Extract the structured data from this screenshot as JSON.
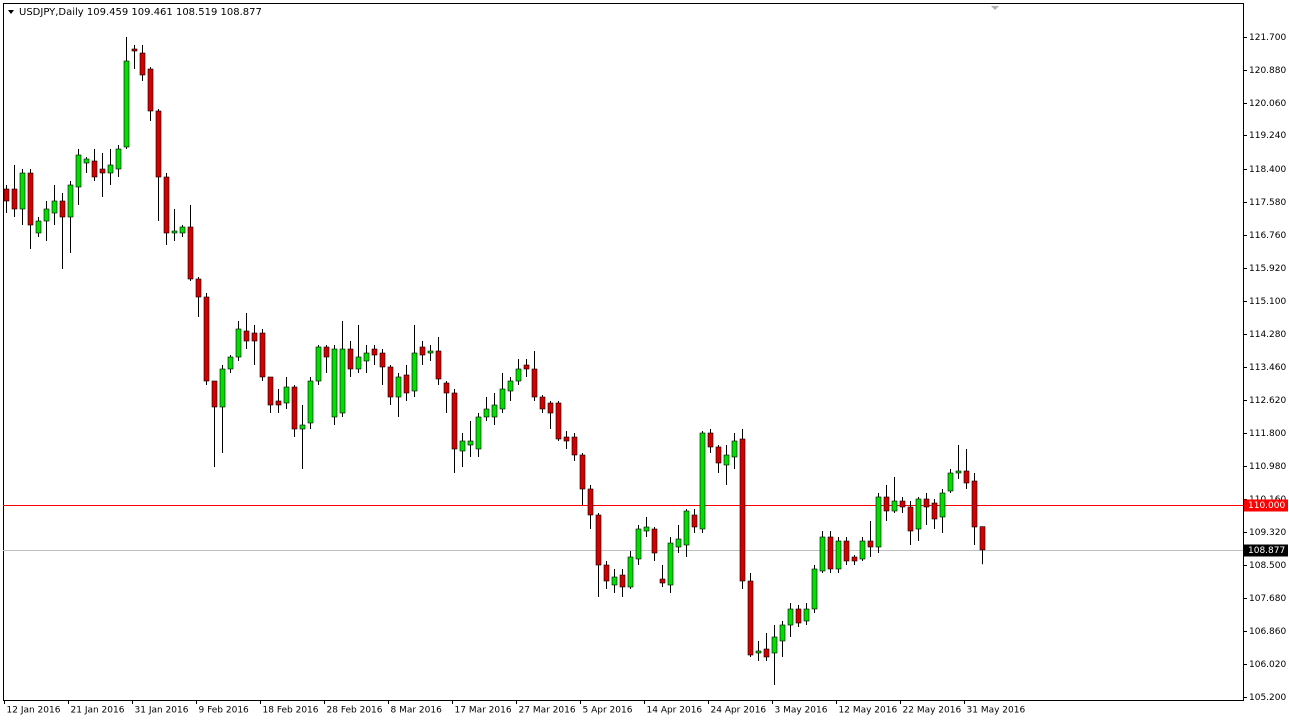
{
  "chart_data": {
    "type": "candlestick",
    "title": "USDJPY,Daily  109.459 109.461 108.519 108.877",
    "up_color": "#00e000",
    "down_color": "#d40000",
    "outline_color": "#000000",
    "categories": [
      "12 Jan 2016",
      null,
      null,
      null,
      null,
      null,
      null,
      null,
      "21 Jan 2016",
      null,
      null,
      null,
      null,
      null,
      null,
      null,
      "31 Jan 2016",
      null,
      null,
      null,
      null,
      null,
      null,
      null,
      "9 Feb 2016",
      null,
      null,
      null,
      null,
      null,
      null,
      null,
      "18 Feb 2016",
      null,
      null,
      null,
      null,
      null,
      null,
      null,
      "28 Feb 2016",
      null,
      null,
      null,
      null,
      null,
      null,
      null,
      "8 Mar 2016",
      null,
      null,
      null,
      null,
      null,
      null,
      null,
      "17 Mar 2016",
      null,
      null,
      null,
      null,
      null,
      null,
      null,
      "27 Mar 2016",
      null,
      null,
      null,
      null,
      null,
      null,
      null,
      "5 Apr 2016",
      null,
      null,
      null,
      null,
      null,
      null,
      null,
      "14 Apr 2016",
      null,
      null,
      null,
      null,
      null,
      null,
      null,
      "24 Apr 2016",
      null,
      null,
      null,
      null,
      null,
      null,
      null,
      "3 May 2016",
      null,
      null,
      null,
      null,
      null,
      null,
      null,
      "12 May 2016",
      null,
      null,
      null,
      null,
      null,
      null,
      null,
      "22 May 2016",
      null,
      null,
      null,
      null,
      null,
      null,
      null,
      "31 May 2016",
      null,
      null
    ],
    "open": [
      117.9,
      117.9,
      117.4,
      118.3,
      116.8,
      117.1,
      117.3,
      117.6,
      117.2,
      117.95,
      118.55,
      118.6,
      118.4,
      118.3,
      118.4,
      118.95,
      121.4,
      121.3,
      120.9,
      119.85,
      118.2,
      116.8,
      116.8,
      116.95,
      115.65,
      115.2,
      113.1,
      112.45,
      113.4,
      113.7,
      114.35,
      114.3,
      114.3,
      113.2,
      112.6,
      112.55,
      112.95,
      111.9,
      112.05,
      113.1,
      113.95,
      112.2,
      112.3,
      113.9,
      113.4,
      113.6,
      113.9,
      113.8,
      113.45,
      112.7,
      113.25,
      112.85,
      113.95,
      113.8,
      113.85,
      113.05,
      112.8,
      111.35,
      111.5,
      111.4,
      112.2,
      112.2,
      112.4,
      112.85,
      113.1,
      113.5,
      113.4,
      112.7,
      112.55,
      112.55,
      111.7,
      111.7,
      111.25,
      110.4,
      109.75,
      108.5,
      108.0,
      108.25,
      107.95,
      108.65,
      109.35,
      109.4,
      108.15,
      108.0,
      108.95,
      109.0,
      109.75,
      109.4,
      111.8,
      111.45,
      111.0,
      111.2,
      111.65,
      108.1,
      106.3,
      106.4,
      106.3,
      106.6,
      107.0,
      107.4,
      107.1,
      107.4,
      108.35,
      109.2,
      108.4,
      109.1,
      108.7,
      108.65,
      109.1,
      108.95,
      110.2,
      109.85,
      110.1,
      109.95,
      109.4,
      110.15,
      110.05,
      109.7,
      110.35,
      110.8,
      110.85,
      110.6,
      109.459
    ],
    "high": [
      118.0,
      118.5,
      118.4,
      118.4,
      117.2,
      117.6,
      118.0,
      117.8,
      118.1,
      118.9,
      118.7,
      118.9,
      118.8,
      118.9,
      119.0,
      121.7,
      121.5,
      121.5,
      120.95,
      119.9,
      118.3,
      117.4,
      117.0,
      117.5,
      115.7,
      115.3,
      113.1,
      113.5,
      113.75,
      114.6,
      114.8,
      114.5,
      114.4,
      113.2,
      112.9,
      113.2,
      113.0,
      112.5,
      113.2,
      114.0,
      114.0,
      114.0,
      114.6,
      114.1,
      114.5,
      114.0,
      114.0,
      113.9,
      113.5,
      113.3,
      113.5,
      114.5,
      114.1,
      114.0,
      114.2,
      113.1,
      112.9,
      111.8,
      112.1,
      112.3,
      112.7,
      112.8,
      113.3,
      113.2,
      113.65,
      113.65,
      113.85,
      112.75,
      112.6,
      112.6,
      111.85,
      111.8,
      111.3,
      110.5,
      109.8,
      108.6,
      108.4,
      108.4,
      108.85,
      109.5,
      109.7,
      109.45,
      108.5,
      109.2,
      109.5,
      109.9,
      109.9,
      111.85,
      111.9,
      111.5,
      111.5,
      111.8,
      111.9,
      108.3,
      106.6,
      106.8,
      107.0,
      107.1,
      107.55,
      107.5,
      107.55,
      108.5,
      109.35,
      109.35,
      109.2,
      109.2,
      108.75,
      109.2,
      109.6,
      110.3,
      110.5,
      110.7,
      110.2,
      110.1,
      110.2,
      110.3,
      110.15,
      110.4,
      110.9,
      111.5,
      111.4,
      110.8,
      109.461
    ],
    "low": [
      117.3,
      117.2,
      117.0,
      116.4,
      116.7,
      116.6,
      117.0,
      115.9,
      116.3,
      117.5,
      118.3,
      118.1,
      117.7,
      118.0,
      118.2,
      118.9,
      120.9,
      120.6,
      119.6,
      117.1,
      116.5,
      116.6,
      116.7,
      115.6,
      114.7,
      113.0,
      110.95,
      111.3,
      113.3,
      113.6,
      113.9,
      113.5,
      113.1,
      112.3,
      112.3,
      112.4,
      111.7,
      110.9,
      111.9,
      113.0,
      113.3,
      112.0,
      112.2,
      113.2,
      113.3,
      113.3,
      113.5,
      113.0,
      112.5,
      112.2,
      112.6,
      112.7,
      113.5,
      113.6,
      113.0,
      112.3,
      110.8,
      110.95,
      111.2,
      111.2,
      112.1,
      112.0,
      112.3,
      112.6,
      113.0,
      113.2,
      112.6,
      112.3,
      111.9,
      111.6,
      111.4,
      111.1,
      110.0,
      109.4,
      107.7,
      107.9,
      107.8,
      107.7,
      107.9,
      108.5,
      109.2,
      108.6,
      107.95,
      107.8,
      108.8,
      108.7,
      109.3,
      109.3,
      111.3,
      110.8,
      110.5,
      110.9,
      107.9,
      106.2,
      106.1,
      106.1,
      105.5,
      106.2,
      106.7,
      106.95,
      107.0,
      107.3,
      108.3,
      108.3,
      108.3,
      108.5,
      108.5,
      108.6,
      108.7,
      108.8,
      109.6,
      109.8,
      109.8,
      109.0,
      109.1,
      109.5,
      109.4,
      109.3,
      110.3,
      110.65,
      110.4,
      109.0,
      108.519
    ],
    "close": [
      117.6,
      117.4,
      118.3,
      117.0,
      117.1,
      117.4,
      117.6,
      117.2,
      118.0,
      118.75,
      118.65,
      118.2,
      118.3,
      118.5,
      118.9,
      121.1,
      121.35,
      120.75,
      119.85,
      118.2,
      116.8,
      116.85,
      116.95,
      115.65,
      115.2,
      113.1,
      112.45,
      113.4,
      113.7,
      114.4,
      114.1,
      114.1,
      113.2,
      112.5,
      112.5,
      112.95,
      111.9,
      112.0,
      113.1,
      113.95,
      113.7,
      113.9,
      113.9,
      113.4,
      113.7,
      113.8,
      113.75,
      113.45,
      112.7,
      113.2,
      112.8,
      113.8,
      113.75,
      113.85,
      113.15,
      112.8,
      111.4,
      111.6,
      111.6,
      112.2,
      112.4,
      112.5,
      112.9,
      113.1,
      113.4,
      113.4,
      112.7,
      112.4,
      112.3,
      111.65,
      111.6,
      111.25,
      110.4,
      109.75,
      108.5,
      108.1,
      108.2,
      107.95,
      108.7,
      109.4,
      109.45,
      108.8,
      108.05,
      109.05,
      109.15,
      109.85,
      109.45,
      111.8,
      111.45,
      111.05,
      111.25,
      111.6,
      108.1,
      106.25,
      106.35,
      106.2,
      106.7,
      107.0,
      107.4,
      107.05,
      107.4,
      108.4,
      109.2,
      108.4,
      109.1,
      108.6,
      108.6,
      109.1,
      108.95,
      110.2,
      109.85,
      110.1,
      109.95,
      109.35,
      110.15,
      109.95,
      109.65,
      110.3,
      110.8,
      110.85,
      110.55,
      109.45,
      108.877
    ],
    "ylim": [
      105.125,
      122.55
    ],
    "yticks": [
      {
        "value": 121.7,
        "label": "121.700"
      },
      {
        "value": 120.88,
        "label": "120.880"
      },
      {
        "value": 120.06,
        "label": "120.060"
      },
      {
        "value": 119.24,
        "label": "119.240"
      },
      {
        "value": 118.4,
        "label": "118.400"
      },
      {
        "value": 117.58,
        "label": "117.580"
      },
      {
        "value": 116.76,
        "label": "116.760"
      },
      {
        "value": 115.92,
        "label": "115.920"
      },
      {
        "value": 115.1,
        "label": "115.100"
      },
      {
        "value": 114.28,
        "label": "114.280"
      },
      {
        "value": 113.46,
        "label": "113.460"
      },
      {
        "value": 112.62,
        "label": "112.620"
      },
      {
        "value": 111.8,
        "label": "111.800"
      },
      {
        "value": 110.98,
        "label": "110.980"
      },
      {
        "value": 110.16,
        "label": "110.160"
      },
      {
        "value": 109.32,
        "label": "109.320"
      },
      {
        "value": 108.5,
        "label": "108.500"
      },
      {
        "value": 107.68,
        "label": "107.680"
      },
      {
        "value": 106.86,
        "label": "106.860"
      },
      {
        "value": 106.02,
        "label": "106.020"
      },
      {
        "value": 105.2,
        "label": "105.200"
      }
    ],
    "levels": [
      {
        "value": 110,
        "label": "110.000",
        "color": "#ff0000",
        "label_color": "#ff0000"
      },
      {
        "value": 108.877,
        "label": "108.877",
        "color": "#c0c0c0",
        "label_color": "#000000"
      }
    ]
  }
}
